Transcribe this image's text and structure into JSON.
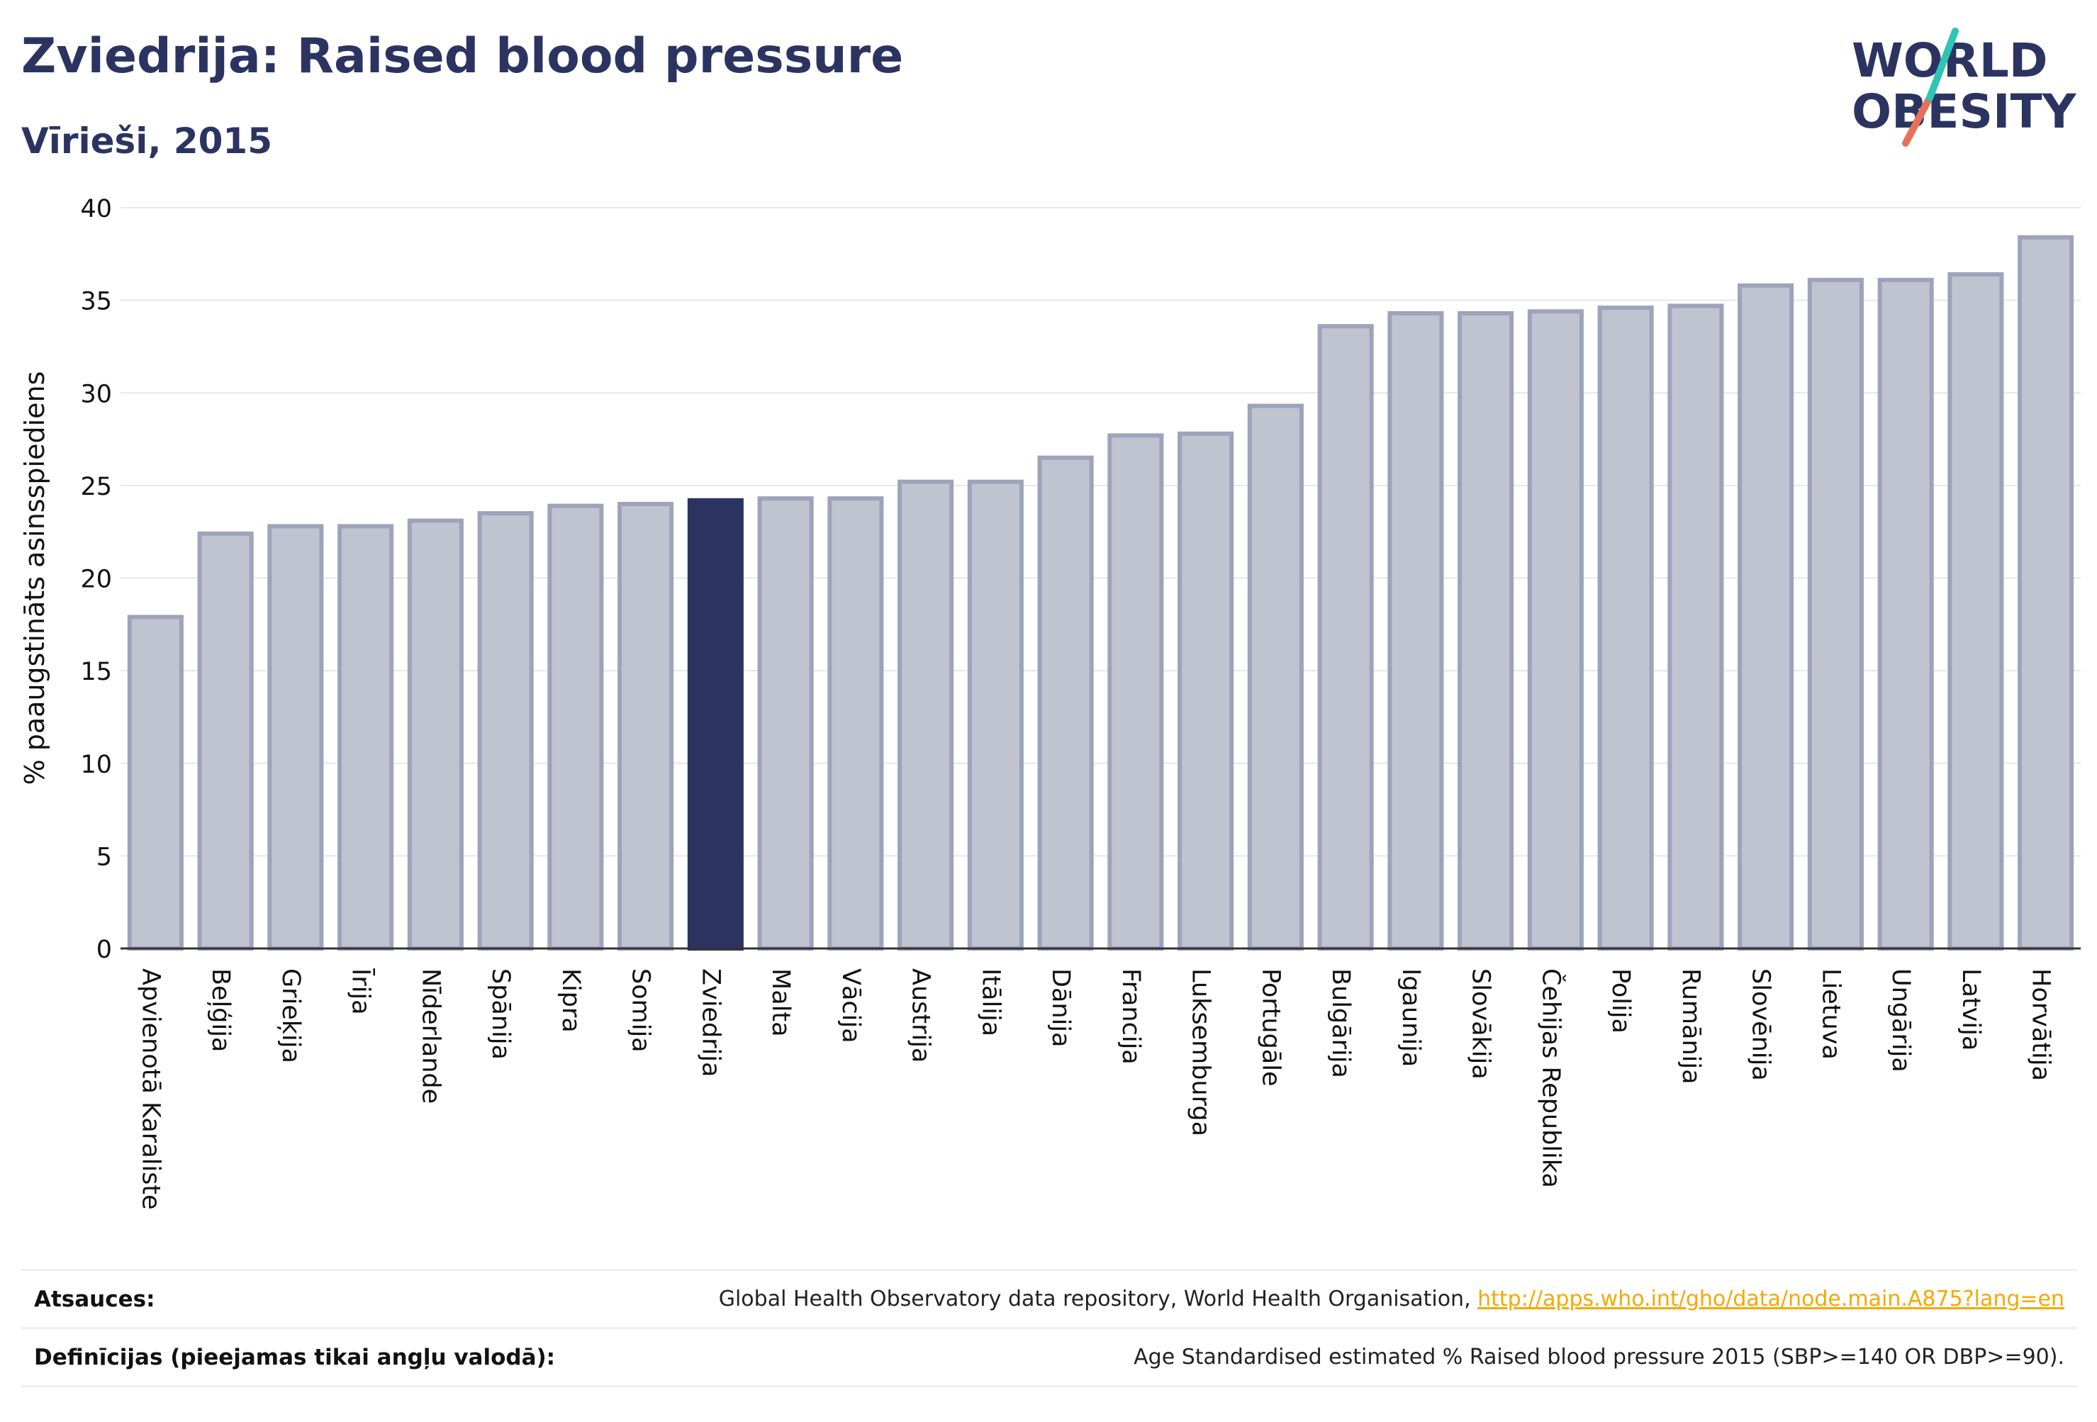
{
  "header": {
    "title": "Zviedrija: Raised blood pressure",
    "subtitle": "Vīrieši, 2015"
  },
  "logo": {
    "line1": "WORLD",
    "line2": "OBESITY"
  },
  "colors": {
    "bar": "#c0c3d0",
    "bar_border": "#9ea3bb",
    "highlight": "#2b3461",
    "text": "#2b3461",
    "link": "#f5a800"
  },
  "chart_data": {
    "type": "bar",
    "title": "Zviedrija: Raised blood pressure",
    "subtitle": "Vīrieši, 2015",
    "ylabel": "% paaugstināts asinsspiediens",
    "ylim": [
      0,
      40
    ],
    "yticks": [
      0,
      5,
      10,
      15,
      20,
      25,
      30,
      35,
      40
    ],
    "grid": true,
    "highlight": "Zviedrija",
    "categories": [
      "Apvienotā Karaliste",
      "Beļģija",
      "Grieķija",
      "Īrija",
      "Nīderlande",
      "Spānija",
      "Kipra",
      "Somija",
      "Zviedrija",
      "Malta",
      "Vācija",
      "Austrija",
      "Itālija",
      "Dānija",
      "Francija",
      "Luksemburga",
      "Portugāle",
      "Bulgārija",
      "Igaunija",
      "Slovākija",
      "Čehijas Republika",
      "Polija",
      "Rumānija",
      "Slovēnija",
      "Lietuva",
      "Ungārija",
      "Latvija",
      "Horvātija"
    ],
    "values": [
      17.9,
      22.4,
      22.8,
      22.8,
      23.1,
      23.5,
      23.9,
      24.0,
      24.2,
      24.3,
      24.3,
      25.2,
      25.2,
      26.5,
      27.7,
      27.8,
      29.3,
      33.6,
      34.3,
      34.3,
      34.4,
      34.6,
      34.7,
      35.8,
      36.1,
      36.1,
      36.4,
      38.4
    ]
  },
  "footer": {
    "sources_label": "Atsauces:",
    "sources_text": "Global Health Observatory data repository, World Health Organisation, ",
    "sources_link": "http://apps.who.int/gho/data/node.main.A875?lang=en",
    "definitions_label": "Definīcijas (pieejamas tikai angļu valodā):",
    "definitions_text": "Age Standardised estimated % Raised blood pressure 2015 (SBP>=140 OR DBP>=90)."
  }
}
